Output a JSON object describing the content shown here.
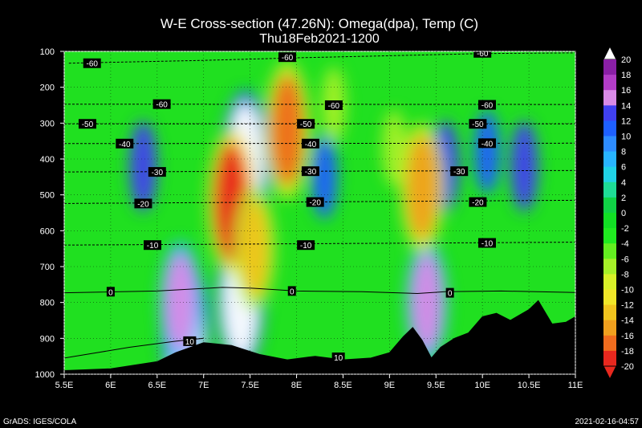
{
  "chart_data": {
    "type": "heatmap",
    "title": "W-E Cross-section (47.26N): Omega(dpa), Temp (C)",
    "subtitle": "Thu18Feb2021-1200",
    "x_tick_labels": [
      "5.5E",
      "6E",
      "6.5E",
      "7E",
      "7.5E",
      "8E",
      "8.5E",
      "9E",
      "9.5E",
      "10E",
      "10.5E",
      "11E"
    ],
    "x_ticks": [
      5.5,
      6,
      6.5,
      7,
      7.5,
      8,
      8.5,
      9,
      9.5,
      10,
      10.5,
      11
    ],
    "xlim": [
      5.5,
      11
    ],
    "y_tick_labels": [
      "100",
      "200",
      "300",
      "400",
      "500",
      "600",
      "700",
      "800",
      "900",
      "1000"
    ],
    "y_ticks": [
      100,
      200,
      300,
      400,
      500,
      600,
      700,
      800,
      900,
      1000
    ],
    "ylim": [
      100,
      1000
    ],
    "colorbar": {
      "levels": [
        "20",
        "18",
        "16",
        "14",
        "12",
        "10",
        "8",
        "6",
        "4",
        "2",
        "0",
        "-2",
        "-4",
        "-6",
        "-8",
        "-10",
        "-12",
        "-14",
        "-16",
        "-18",
        "-20"
      ],
      "colors": [
        "#8a1fa6",
        "#b33cc8",
        "#d98ae6",
        "#4040f0",
        "#1e60ff",
        "#2d8cff",
        "#28b4ff",
        "#20d2e6",
        "#1edc96",
        "#10d246",
        "#12e024",
        "#20eb20",
        "#64ee20",
        "#a6f028",
        "#d8f028",
        "#f0e628",
        "#f0c41e",
        "#f0a01e",
        "#f06c1e",
        "#e8281e"
      ],
      "cap_top": "#ffffff",
      "cap_bottom": "#e8281e"
    },
    "field_features": [
      {
        "kind": "updraft",
        "x": 7.45,
        "p": 410,
        "val": 20
      },
      {
        "kind": "updraft",
        "x": 7.4,
        "p": 790,
        "val": 20
      },
      {
        "kind": "updraft",
        "x": 6.8,
        "p": 880,
        "val": 20
      },
      {
        "kind": "updraft",
        "x": 6.35,
        "p": 420,
        "val": 12
      },
      {
        "kind": "updraft",
        "x": 6.75,
        "p": 800,
        "val": 14
      },
      {
        "kind": "updraft",
        "x": 10.45,
        "p": 420,
        "val": 12
      },
      {
        "kind": "updraft",
        "x": 10.05,
        "p": 380,
        "val": 10
      },
      {
        "kind": "updraft",
        "x": 9.6,
        "p": 420,
        "val": 12
      },
      {
        "kind": "updraft",
        "x": 9.4,
        "p": 800,
        "val": 14
      },
      {
        "kind": "updraft",
        "x": 8.3,
        "p": 450,
        "val": 10
      },
      {
        "kind": "downdraft",
        "x": 7.9,
        "p": 320,
        "val": -18
      },
      {
        "kind": "downdraft",
        "x": 7.3,
        "p": 520,
        "val": -20
      },
      {
        "kind": "downdraft",
        "x": 7.55,
        "p": 650,
        "val": -14
      },
      {
        "kind": "downdraft",
        "x": 9.35,
        "p": 480,
        "val": -16
      },
      {
        "kind": "downdraft",
        "x": 9.05,
        "p": 370,
        "val": -8
      },
      {
        "kind": "downdraft",
        "x": 8.4,
        "p": 250,
        "val": -8
      }
    ],
    "temperature_contours": [
      {
        "label": "-60",
        "points": [
          [
            5.55,
            133
          ],
          [
            7,
            125
          ],
          [
            8,
            118
          ],
          [
            9,
            112
          ],
          [
            10,
            106
          ],
          [
            11,
            104
          ]
        ],
        "label_at": [
          [
            5.8,
            133
          ],
          [
            7.9,
            116
          ],
          [
            10,
            104
          ]
        ]
      },
      {
        "label": "-60",
        "points": [
          [
            5.5,
            247
          ],
          [
            11,
            248
          ]
        ],
        "label_at": [
          [
            6.55,
            247
          ],
          [
            8.4,
            250
          ],
          [
            10.05,
            249
          ]
        ]
      },
      {
        "label": "-50",
        "points": [
          [
            5.5,
            302
          ],
          [
            11,
            302
          ]
        ],
        "label_at": [
          [
            5.75,
            302
          ],
          [
            8.1,
            302
          ],
          [
            9.95,
            302
          ]
        ]
      },
      {
        "label": "-40",
        "points": [
          [
            5.5,
            357
          ],
          [
            11,
            356
          ]
        ],
        "label_at": [
          [
            6.15,
            357
          ],
          [
            8.15,
            357
          ],
          [
            10.05,
            356
          ]
        ]
      },
      {
        "label": "-30",
        "points": [
          [
            5.5,
            436
          ],
          [
            11,
            432
          ]
        ],
        "label_at": [
          [
            6.5,
            436
          ],
          [
            8.15,
            434
          ],
          [
            9.75,
            434
          ]
        ]
      },
      {
        "label": "-20",
        "points": [
          [
            5.5,
            524
          ],
          [
            11,
            515
          ]
        ],
        "label_at": [
          [
            6.35,
            524
          ],
          [
            8.2,
            520
          ],
          [
            9.95,
            520
          ]
        ]
      },
      {
        "label": "-10",
        "points": [
          [
            5.5,
            640
          ],
          [
            11,
            632
          ]
        ],
        "label_at": [
          [
            6.45,
            640
          ],
          [
            8.1,
            640
          ],
          [
            10.05,
            634
          ]
        ]
      },
      {
        "label": "0",
        "points": [
          [
            5.5,
            773
          ],
          [
            6.5,
            768
          ],
          [
            7.2,
            758
          ],
          [
            7.5,
            760
          ],
          [
            8,
            768
          ],
          [
            8.7,
            770
          ],
          [
            9.3,
            775
          ],
          [
            9.6,
            770
          ],
          [
            10.2,
            768
          ],
          [
            11,
            772
          ]
        ],
        "label_at": [
          [
            6.0,
            770
          ],
          [
            7.95,
            768
          ],
          [
            9.65,
            773
          ]
        ]
      },
      {
        "label": "10",
        "points": [
          [
            5.5,
            955
          ],
          [
            6.2,
            925
          ],
          [
            6.7,
            908
          ],
          [
            7.0,
            900
          ]
        ],
        "label_at": [
          [
            6.85,
            908
          ],
          [
            8.45,
            953
          ]
        ]
      }
    ],
    "terrain_surface": [
      [
        5.5,
        990
      ],
      [
        6.0,
        985
      ],
      [
        6.5,
        965
      ],
      [
        6.7,
        940
      ],
      [
        7.0,
        912
      ],
      [
        7.3,
        920
      ],
      [
        7.6,
        945
      ],
      [
        7.9,
        960
      ],
      [
        8.2,
        950
      ],
      [
        8.5,
        960
      ],
      [
        8.8,
        955
      ],
      [
        9.0,
        940
      ],
      [
        9.15,
        895
      ],
      [
        9.25,
        870
      ],
      [
        9.35,
        905
      ],
      [
        9.45,
        955
      ],
      [
        9.55,
        925
      ],
      [
        9.7,
        900
      ],
      [
        9.85,
        885
      ],
      [
        10.0,
        840
      ],
      [
        10.15,
        830
      ],
      [
        10.3,
        850
      ],
      [
        10.5,
        820
      ],
      [
        10.6,
        795
      ],
      [
        10.75,
        860
      ],
      [
        10.9,
        855
      ],
      [
        11,
        840
      ]
    ]
  },
  "footer": {
    "left": "GrADS: IGES/COLA",
    "right": "2021-02-16-04:57"
  }
}
